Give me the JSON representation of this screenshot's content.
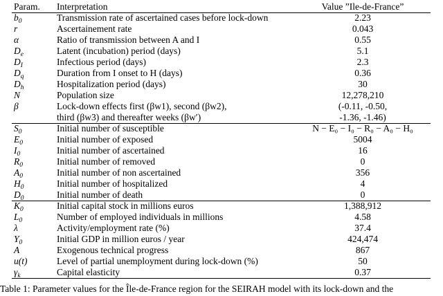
{
  "table": {
    "header": [
      "Param.",
      "Interpretation",
      "Value ”Ile-de-France”"
    ],
    "sections": [
      [
        {
          "param": {
            "sym": "b",
            "sub": "0"
          },
          "interp": [
            "Transmission rate of ascertained cases before lock-down"
          ],
          "value": [
            "2.23"
          ]
        },
        {
          "param": {
            "sym": "r"
          },
          "interp": [
            "Ascertainement rate"
          ],
          "value": [
            "0.043"
          ]
        },
        {
          "param": {
            "sym": "α"
          },
          "interp": [
            "Ratio of transmission between A and I"
          ],
          "value": [
            "0.55"
          ]
        },
        {
          "param": {
            "sym": "D",
            "sub": "e"
          },
          "interp": [
            "Latent (incubation) period (days)"
          ],
          "value": [
            "5.1"
          ]
        },
        {
          "param": {
            "sym": "D",
            "sub": "I"
          },
          "interp": [
            "Infectious period (days)"
          ],
          "value": [
            "2.3"
          ]
        },
        {
          "param": {
            "sym": "D",
            "sub": "q"
          },
          "interp": [
            "Duration from I onset to H (days)"
          ],
          "value": [
            "0.36"
          ]
        },
        {
          "param": {
            "sym": "D",
            "sub": "h"
          },
          "interp": [
            "Hospitalization period (days)"
          ],
          "value": [
            "30"
          ]
        },
        {
          "param": {
            "sym": "N"
          },
          "interp": [
            "Population size"
          ],
          "value": [
            "12,278,210"
          ]
        },
        {
          "param": {
            "sym": "β"
          },
          "interp": [
            "Lock-down effects first (βw1), second (βw2),",
            "third (βw3) and thereafter weeks (βw′)"
          ],
          "value": [
            "(-0.11, -0.50,",
            "-1.36, -1.46)"
          ]
        }
      ],
      [
        {
          "param": {
            "sym": "S",
            "sub": "0"
          },
          "interp": [
            "Initial number of susceptible"
          ],
          "value": [
            "N − E₀ − I₀ − R₀ − A₀ − H₀"
          ]
        },
        {
          "param": {
            "sym": "E",
            "sub": "0"
          },
          "interp": [
            "Initial number of exposed"
          ],
          "value": [
            "5004"
          ]
        },
        {
          "param": {
            "sym": "I",
            "sub": "0"
          },
          "interp": [
            "Initial number of ascertained"
          ],
          "value": [
            "16"
          ]
        },
        {
          "param": {
            "sym": "R",
            "sub": "0"
          },
          "interp": [
            "Initial number of removed"
          ],
          "value": [
            "0"
          ]
        },
        {
          "param": {
            "sym": "A",
            "sub": "0"
          },
          "interp": [
            "Initial number of non ascertained"
          ],
          "value": [
            "356"
          ]
        },
        {
          "param": {
            "sym": "H",
            "sub": "0"
          },
          "interp": [
            "Initial number of hospitalized"
          ],
          "value": [
            "4"
          ]
        },
        {
          "param": {
            "sym": "D",
            "sub": "0"
          },
          "interp": [
            "Initial number of death"
          ],
          "value": [
            "0"
          ]
        }
      ],
      [
        {
          "param": {
            "sym": "K",
            "sub": "0"
          },
          "interp": [
            "Initial capital stock in millions euros"
          ],
          "value": [
            "1,388,912"
          ]
        },
        {
          "param": {
            "sym": "L",
            "sub": "0"
          },
          "interp": [
            "Number of employed individuals in millions"
          ],
          "value": [
            "4.58"
          ]
        },
        {
          "param": {
            "sym": "λ"
          },
          "interp": [
            "Activity/employment rate (%)"
          ],
          "value": [
            "37.4"
          ]
        },
        {
          "param": {
            "sym": "Y",
            "sub": "0"
          },
          "interp": [
            "Initial GDP in million euros / year"
          ],
          "value": [
            "424,474"
          ]
        },
        {
          "param": {
            "sym": "A"
          },
          "interp": [
            "Exogenous technical progress"
          ],
          "value": [
            "867"
          ]
        },
        {
          "param": {
            "sym": "u(t)"
          },
          "interp": [
            "Level of partial unemployment during lock-down (%)"
          ],
          "value": [
            "50"
          ]
        },
        {
          "param": {
            "sym": "γ",
            "sub": "k"
          },
          "interp": [
            "Capital elasticity"
          ],
          "value": [
            "0.37"
          ]
        }
      ]
    ],
    "caption": "Table 1: Parameter values for the Île-de-France region for the SEIRAH model with its lock-down and the"
  }
}
